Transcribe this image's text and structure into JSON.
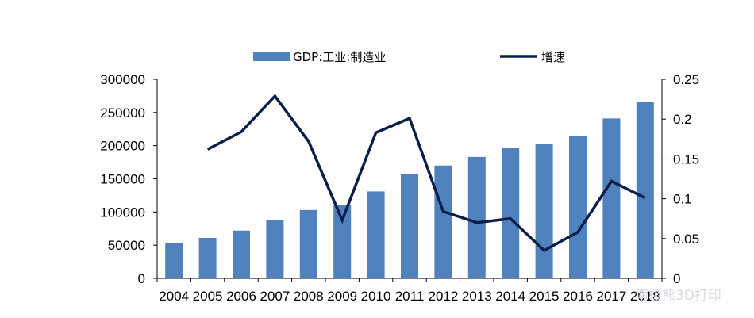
{
  "chart_data": {
    "type": "bar",
    "title": "",
    "xlabel": "",
    "ylabel": "",
    "categories": [
      "2004",
      "2005",
      "2006",
      "2007",
      "2008",
      "2009",
      "2010",
      "2011",
      "2012",
      "2013",
      "2014",
      "2015",
      "2016",
      "2017",
      "2018"
    ],
    "series": [
      {
        "name": "GDP:工业:制造业",
        "type": "bar",
        "axis": "left",
        "color": "#4f81bd",
        "values": [
          53000,
          61000,
          72000,
          88000,
          103000,
          111000,
          131000,
          157000,
          170000,
          183000,
          196000,
          203000,
          215000,
          241000,
          266000
        ]
      },
      {
        "name": "增速",
        "type": "line",
        "axis": "right",
        "color": "#0b1f4a",
        "values": [
          null,
          0.162,
          0.184,
          0.229,
          0.172,
          0.073,
          0.183,
          0.201,
          0.084,
          0.07,
          0.075,
          0.035,
          0.058,
          0.122,
          0.101
        ]
      }
    ],
    "ylim": [
      0,
      300000
    ],
    "y2lim": [
      0,
      0.25
    ],
    "yticks": [
      "0",
      "50000",
      "100000",
      "150000",
      "200000",
      "250000",
      "300000"
    ],
    "y2ticks": [
      "0",
      "0.05",
      "0.1",
      "0.15",
      "0.2",
      "0.25"
    ],
    "legend_position": "top",
    "grid": false
  },
  "watermark": "南极熊3D打印"
}
